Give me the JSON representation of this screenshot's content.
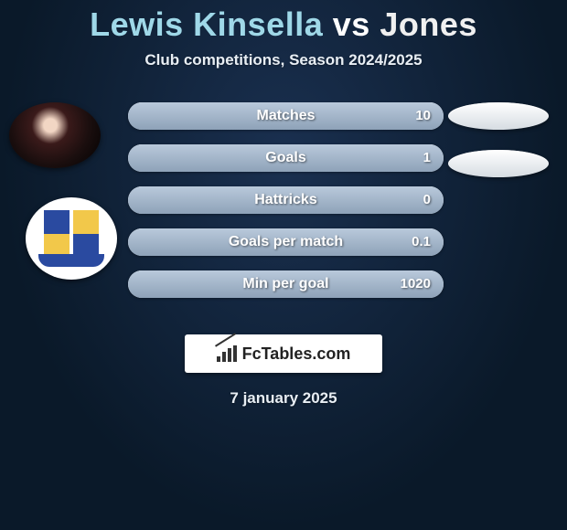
{
  "title": {
    "player1": "Lewis Kinsella",
    "vs": "vs",
    "player2": "Jones"
  },
  "subtitle": "Club competitions, Season 2024/2025",
  "colors": {
    "player1_text": "#9fd8e8",
    "vs_text": "#ffffff",
    "player2_text": "#f0f0f0",
    "background_inner": "#1a3050",
    "background_outer": "#0a1929",
    "pill_light_top": "#e9edf1",
    "pill_light_bottom": "#c0c6cc",
    "pill_fill_top": "#b9c9db",
    "pill_fill_bottom": "#8ea2b8",
    "bubble_top": "#ffffff",
    "bubble_bottom": "#d6dce2",
    "text_white": "#ffffff"
  },
  "stats": [
    {
      "label": "Matches",
      "value": "10",
      "fill_pct": 100
    },
    {
      "label": "Goals",
      "value": "1",
      "fill_pct": 100
    },
    {
      "label": "Hattricks",
      "value": "0",
      "fill_pct": 100
    },
    {
      "label": "Goals per match",
      "value": "0.1",
      "fill_pct": 100
    },
    {
      "label": "Min per goal",
      "value": "1020",
      "fill_pct": 100
    }
  ],
  "side_bubbles_count": 2,
  "footer_brand": "FcTables.com",
  "date": "7 january 2025"
}
